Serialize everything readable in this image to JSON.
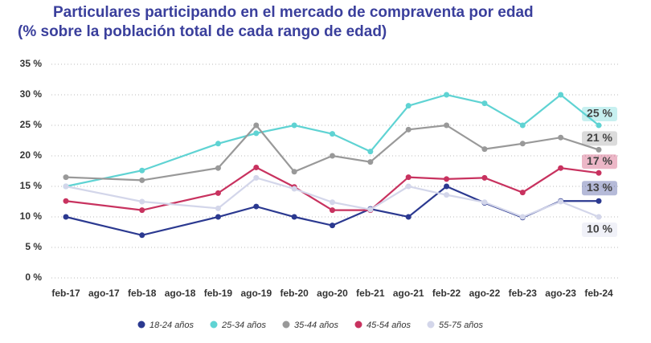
{
  "chart_data": {
    "type": "line",
    "title": "Particulares participando en el mercado de compraventa por edad",
    "subtitle": "(% sobre la población total de cada rango de edad)",
    "x": [
      0,
      2,
      4,
      5,
      6,
      7,
      8,
      9,
      10,
      11,
      12,
      13,
      14
    ],
    "xlim": [
      0,
      14
    ],
    "xticks": [
      {
        "value": 0,
        "label": "feb-17"
      },
      {
        "value": 1,
        "label": "ago-17"
      },
      {
        "value": 2,
        "label": "feb-18"
      },
      {
        "value": 3,
        "label": "ago-18"
      },
      {
        "value": 4,
        "label": "feb-19"
      },
      {
        "value": 5,
        "label": "ago-19"
      },
      {
        "value": 6,
        "label": "feb-20"
      },
      {
        "value": 7,
        "label": "ago-20"
      },
      {
        "value": 8,
        "label": "feb-21"
      },
      {
        "value": 9,
        "label": "ago-21"
      },
      {
        "value": 10,
        "label": "feb-22"
      },
      {
        "value": 11,
        "label": "ago-22"
      },
      {
        "value": 12,
        "label": "feb-23"
      },
      {
        "value": 13,
        "label": "ago-23"
      },
      {
        "value": 14,
        "label": "feb-24"
      }
    ],
    "ylim": [
      0,
      35
    ],
    "yticks": [
      {
        "value": 0,
        "label": "0 %"
      },
      {
        "value": 5,
        "label": "5 %"
      },
      {
        "value": 10,
        "label": "10 %"
      },
      {
        "value": 15,
        "label": "15 %"
      },
      {
        "value": 20,
        "label": "20 %"
      },
      {
        "value": 25,
        "label": "25 %"
      },
      {
        "value": 30,
        "label": "30 %"
      },
      {
        "value": 35,
        "label": "35 %"
      }
    ],
    "grid": true,
    "series": [
      {
        "name": "18-24 años",
        "color": "#2b3990",
        "values": [
          10,
          7,
          10,
          11.7,
          10,
          8.6,
          11.3,
          10,
          15,
          12.3,
          9.9,
          12.6,
          12.6
        ],
        "value_labels": [
          null,
          null,
          null,
          null,
          null,
          null,
          null,
          null,
          null,
          null,
          null,
          null,
          "13 %"
        ]
      },
      {
        "name": "25-34 años",
        "color": "#5fd3d3",
        "values": [
          15,
          17.6,
          22,
          23.7,
          25,
          23.6,
          20.7,
          28.2,
          30,
          28.6,
          25,
          30,
          25
        ],
        "value_labels": [
          null,
          null,
          null,
          null,
          null,
          null,
          null,
          null,
          null,
          null,
          null,
          null,
          "25 %"
        ]
      },
      {
        "name": "35-44 años",
        "color": "#999999",
        "values": [
          16.5,
          16,
          18,
          25,
          17.4,
          20,
          19,
          24.3,
          25,
          21.1,
          22,
          23,
          21
        ],
        "value_labels": [
          null,
          null,
          null,
          null,
          null,
          null,
          null,
          null,
          null,
          null,
          null,
          null,
          "21 %"
        ]
      },
      {
        "name": "45-54 años",
        "color": "#c8325f",
        "values": [
          12.6,
          11.1,
          13.9,
          18.1,
          14.9,
          11.1,
          11.1,
          16.5,
          16.2,
          16.4,
          14,
          18,
          17.2
        ],
        "value_labels": [
          null,
          null,
          null,
          null,
          null,
          null,
          null,
          null,
          null,
          null,
          null,
          null,
          "17 %"
        ]
      },
      {
        "name": "55-75 años",
        "color": "#d3d6ea",
        "values": [
          15,
          12.5,
          11.4,
          16.4,
          14.6,
          12.4,
          11.2,
          15,
          13.6,
          12.4,
          10,
          12.5,
          10
        ],
        "value_labels": [
          null,
          null,
          null,
          null,
          null,
          null,
          null,
          null,
          null,
          null,
          null,
          null,
          "10 %"
        ]
      }
    ]
  }
}
